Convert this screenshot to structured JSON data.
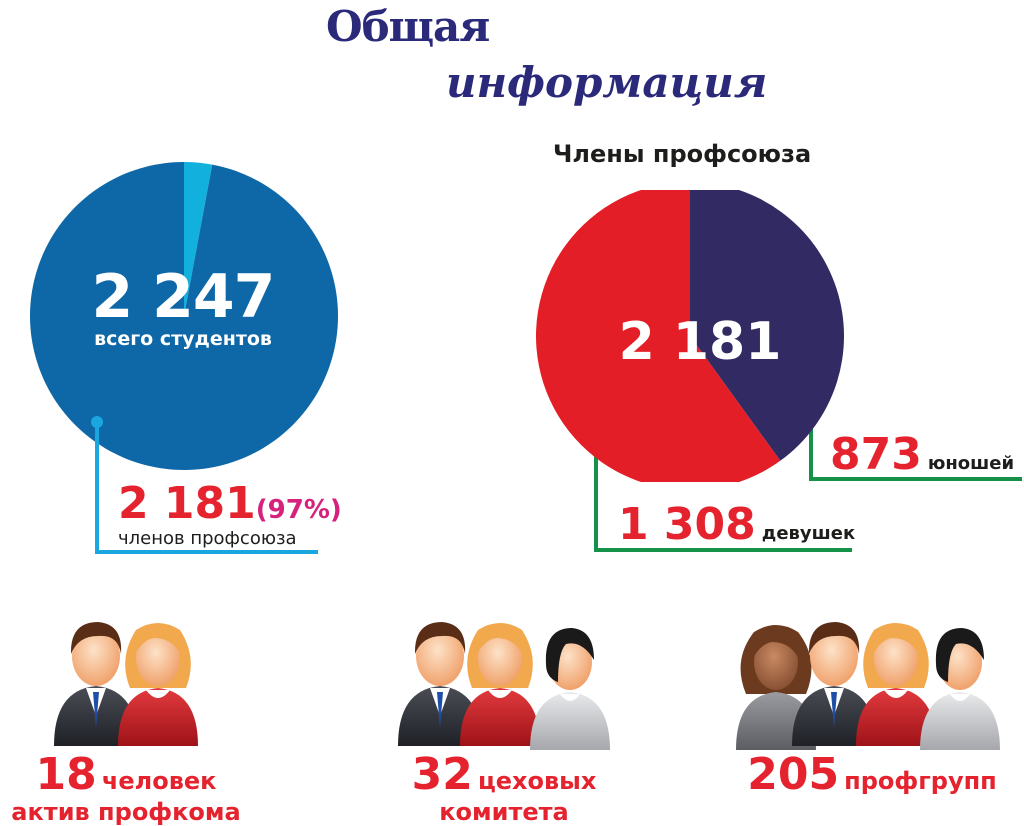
{
  "header": {
    "title_line1": "Общая",
    "title_line2": "информация"
  },
  "colors": {
    "students_other": "#0e68a8",
    "students_highlight": "#12b1dd",
    "girls": "#e31e26",
    "boys": "#322b63",
    "callout_blue": "#1aa6df",
    "callout_green": "#15914a",
    "number_red": "#e5232f",
    "percent_pink": "#d6227c"
  },
  "chart_data": [
    {
      "type": "pie",
      "title": "",
      "center_value": "2 247",
      "center_label": "всего студентов",
      "total": 2247,
      "slices": [
        {
          "label": "",
          "value": 66,
          "color": "#12b1dd"
        },
        {
          "label": "членов профсоюза",
          "value": 2181,
          "color": "#0e68a8"
        }
      ],
      "callout": {
        "value_text": "2 181",
        "percent_text": "(97%)",
        "label": "членов профсоюза"
      }
    },
    {
      "type": "pie",
      "title": "Члены профсоюза",
      "center_value": "2 181",
      "total": 2181,
      "slices": [
        {
          "label": "юношей",
          "value": 873,
          "value_text": "873",
          "color": "#322b63"
        },
        {
          "label": "девушек",
          "value": 1308,
          "value_text": "1 308",
          "color": "#e31e26"
        }
      ]
    }
  ],
  "groups": [
    {
      "value": "18",
      "label": "человек",
      "label2": "актив профкома",
      "icon": "two-people-icon"
    },
    {
      "value": "32",
      "label": "цеховых",
      "label2": "комитета",
      "icon": "three-people-icon"
    },
    {
      "value": "205",
      "label": "профгрупп",
      "icon": "four-people-icon"
    }
  ]
}
